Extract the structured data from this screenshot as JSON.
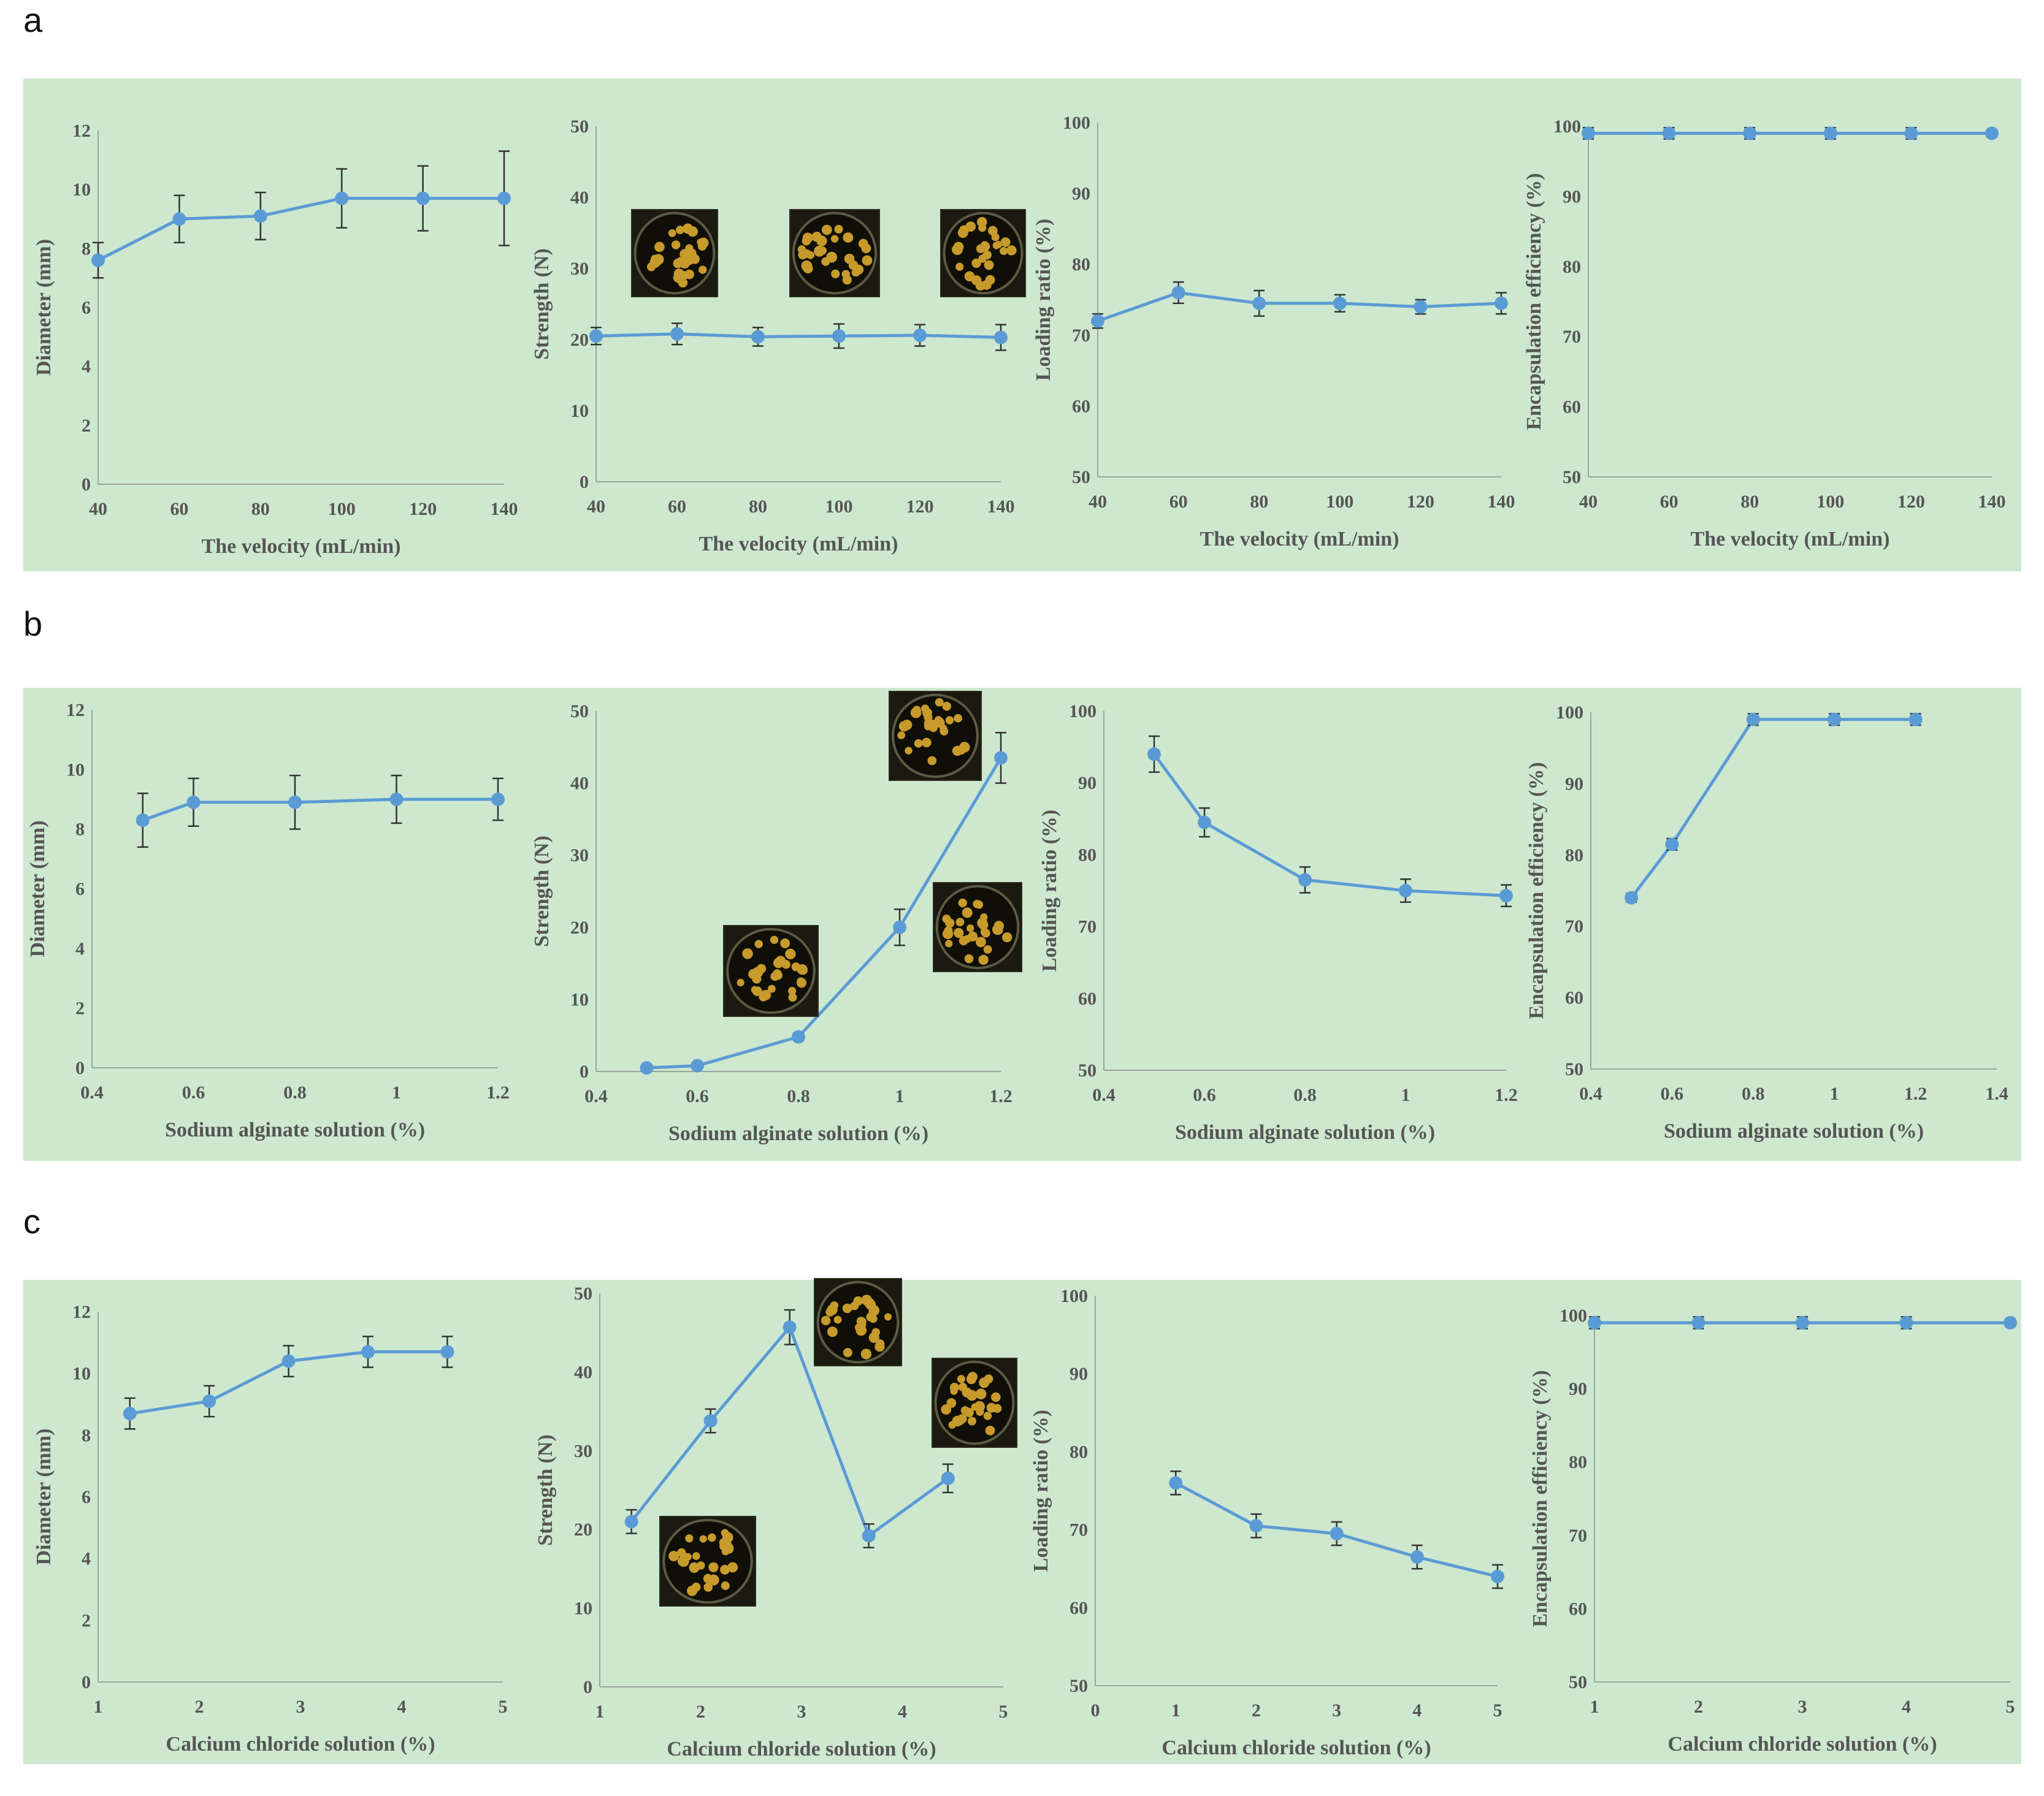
{
  "panel_labels": [
    "a",
    "b",
    "c"
  ],
  "colors": {
    "band": "#cde8cf",
    "series": "#5b9bd5",
    "error_bar": "#333333"
  },
  "chart_data": [
    {
      "id": "a1",
      "type": "line",
      "x": [
        40,
        60,
        80,
        100,
        120,
        140
      ],
      "xticks": [
        "40",
        "60",
        "80",
        "100",
        "120",
        "140"
      ],
      "xlim": [
        40,
        140
      ],
      "values": [
        7.6,
        9.0,
        9.1,
        9.7,
        9.7,
        9.7
      ],
      "errors": [
        0.6,
        0.8,
        0.8,
        1.0,
        1.1,
        1.6
      ],
      "yticks": [
        "0",
        "2",
        "4",
        "6",
        "8",
        "10",
        "12"
      ],
      "ylim": [
        0,
        12
      ],
      "xlabel": "The velocity (mL/min)",
      "ylabel": "Diameter (mm)",
      "photos": []
    },
    {
      "id": "a2",
      "type": "line",
      "x": [
        40,
        60,
        80,
        100,
        120,
        140
      ],
      "xticks": [
        "40",
        "60",
        "80",
        "100",
        "120",
        "140"
      ],
      "xlim": [
        40,
        140
      ],
      "values": [
        20.5,
        20.8,
        20.4,
        20.5,
        20.6,
        20.3
      ],
      "errors": [
        1.2,
        1.5,
        1.3,
        1.7,
        1.5,
        1.8
      ],
      "yticks": [
        "0",
        "10",
        "20",
        "30",
        "40",
        "50"
      ],
      "ylim": [
        0,
        50
      ],
      "xlabel": "The velocity (mL/min)",
      "ylabel": "Strength (N)",
      "photos": [
        "dish",
        "dish",
        "dish"
      ]
    },
    {
      "id": "a3",
      "type": "line",
      "x": [
        40,
        60,
        80,
        100,
        120,
        140
      ],
      "xticks": [
        "40",
        "60",
        "80",
        "100",
        "120",
        "140"
      ],
      "xlim": [
        40,
        140
      ],
      "values": [
        72.0,
        76.0,
        74.5,
        74.5,
        74.0,
        74.5
      ],
      "errors": [
        1.0,
        1.5,
        1.8,
        1.2,
        1.0,
        1.5
      ],
      "yticks": [
        "50",
        "60",
        "70",
        "80",
        "90",
        "100"
      ],
      "ylim": [
        50,
        100
      ],
      "xlabel": "The velocity (mL/min)",
      "ylabel": "Loading ratio (%)",
      "photos": []
    },
    {
      "id": "a4",
      "type": "line",
      "x": [
        40,
        60,
        80,
        100,
        120,
        140
      ],
      "xticks": [
        "40",
        "60",
        "80",
        "100",
        "120",
        "140"
      ],
      "xlim": [
        40,
        140
      ],
      "values": [
        99.0,
        99.0,
        99.0,
        99.0,
        99.0,
        99.0
      ],
      "errors": [
        0.8,
        0.8,
        0.8,
        0.8,
        0.8,
        0.5
      ],
      "yticks": [
        "50",
        "60",
        "70",
        "80",
        "90",
        "100"
      ],
      "ylim": [
        50,
        100
      ],
      "xlabel": "The velocity (mL/min)",
      "ylabel": "Encapsulation efficiency (%)",
      "photos": []
    },
    {
      "id": "b1",
      "type": "line",
      "x": [
        0.5,
        0.6,
        0.8,
        1.0,
        1.2
      ],
      "xticks": [
        "0.4",
        "0.6",
        "0.8",
        "1",
        "1.2"
      ],
      "xlim": [
        0.4,
        1.2
      ],
      "values": [
        8.3,
        8.9,
        8.9,
        9.0,
        9.0
      ],
      "errors": [
        0.9,
        0.8,
        0.9,
        0.8,
        0.7
      ],
      "yticks": [
        "0",
        "2",
        "4",
        "6",
        "8",
        "10",
        "12"
      ],
      "ylim": [
        0,
        12
      ],
      "xlabel": "Sodium alginate solution (%)",
      "ylabel": "Diameter (mm)",
      "photos": []
    },
    {
      "id": "b2",
      "type": "line",
      "x": [
        0.5,
        0.6,
        0.8,
        1.0,
        1.2
      ],
      "xticks": [
        "0.4",
        "0.6",
        "0.8",
        "1",
        "1.2"
      ],
      "xlim": [
        0.4,
        1.2
      ],
      "values": [
        0.5,
        0.8,
        4.8,
        20.0,
        43.5
      ],
      "errors": [
        0.2,
        0.2,
        0.5,
        2.5,
        3.5
      ],
      "yticks": [
        "0",
        "10",
        "20",
        "30",
        "40",
        "50"
      ],
      "ylim": [
        0,
        50
      ],
      "xlabel": "Sodium alginate solution (%)",
      "ylabel": "Strength (N)",
      "photos": [
        "dish",
        "dish",
        "dish"
      ]
    },
    {
      "id": "b3",
      "type": "line",
      "x": [
        0.5,
        0.6,
        0.8,
        1.0,
        1.2
      ],
      "xticks": [
        "0.4",
        "0.6",
        "0.8",
        "1",
        "1.2"
      ],
      "xlim": [
        0.4,
        1.2
      ],
      "values": [
        94.0,
        84.5,
        76.5,
        75.0,
        74.3
      ],
      "errors": [
        2.5,
        2.0,
        1.8,
        1.6,
        1.5
      ],
      "yticks": [
        "50",
        "60",
        "70",
        "80",
        "90",
        "100"
      ],
      "ylim": [
        50,
        100
      ],
      "xlabel": "Sodium alginate solution (%)",
      "ylabel": "Loading ratio (%)",
      "photos": []
    },
    {
      "id": "b4",
      "type": "line",
      "x": [
        0.5,
        0.6,
        0.8,
        1.0,
        1.2
      ],
      "xticks": [
        "0.4",
        "0.6",
        "0.8",
        "1",
        "1.2",
        "1.4"
      ],
      "xlim": [
        0.4,
        1.4
      ],
      "values": [
        74.0,
        81.5,
        99.0,
        99.0,
        99.0
      ],
      "errors": [
        0.6,
        0.8,
        0.8,
        0.8,
        0.8
      ],
      "yticks": [
        "50",
        "60",
        "70",
        "80",
        "90",
        "100"
      ],
      "ylim": [
        50,
        100
      ],
      "xlabel": "Sodium alginate solution (%)",
      "ylabel": "Encapsulation efficiency (%)",
      "photos": []
    },
    {
      "id": "c1",
      "type": "line",
      "x": [
        1,
        2,
        3,
        4,
        5
      ],
      "xticks": [
        "1",
        "2",
        "3",
        "4",
        "5"
      ],
      "xlim": [
        0.6,
        5.7
      ],
      "values": [
        8.7,
        9.1,
        10.4,
        10.7,
        10.7
      ],
      "errors": [
        0.5,
        0.5,
        0.5,
        0.5,
        0.5
      ],
      "yticks": [
        "0",
        "2",
        "4",
        "6",
        "8",
        "10",
        "12"
      ],
      "ylim": [
        0,
        12
      ],
      "xlabel": "Calcium chloride solution (%)",
      "ylabel": "Diameter (mm)",
      "photos": []
    },
    {
      "id": "c2",
      "type": "line",
      "x": [
        1,
        2,
        3,
        4,
        5
      ],
      "xticks": [
        "1",
        "2",
        "3",
        "4",
        "5"
      ],
      "xlim": [
        0.6,
        5.7
      ],
      "values": [
        21.0,
        33.8,
        45.7,
        19.2,
        26.5
      ],
      "errors": [
        1.5,
        1.5,
        2.2,
        1.5,
        1.8
      ],
      "yticks": [
        "0",
        "10",
        "20",
        "30",
        "40",
        "50"
      ],
      "ylim": [
        0,
        50
      ],
      "xlabel": "Calcium chloride solution (%)",
      "ylabel": "Strength (N)",
      "photos": [
        "dish",
        "dish",
        "dish"
      ]
    },
    {
      "id": "c3",
      "type": "line",
      "x": [
        1,
        2,
        3,
        4,
        5
      ],
      "xticks": [
        "0",
        "1",
        "2",
        "3",
        "4",
        "5"
      ],
      "xlim": [
        0,
        5
      ],
      "values": [
        76.0,
        70.5,
        69.5,
        66.5,
        64.0
      ],
      "errors": [
        1.5,
        1.5,
        1.5,
        1.5,
        1.5
      ],
      "yticks": [
        "50",
        "60",
        "70",
        "80",
        "90",
        "100"
      ],
      "ylim": [
        50,
        100
      ],
      "xlabel": "Calcium chloride solution (%)",
      "ylabel": "Loading ratio (%)",
      "photos": []
    },
    {
      "id": "c4",
      "type": "line",
      "x": [
        1,
        2,
        3,
        4,
        5
      ],
      "xticks": [
        "1",
        "2",
        "3",
        "4",
        "5"
      ],
      "xlim": [
        1,
        5
      ],
      "values": [
        99.0,
        99.0,
        99.0,
        99.0,
        99.0
      ],
      "errors": [
        0.8,
        0.8,
        0.8,
        0.8,
        0.5
      ],
      "yticks": [
        "50",
        "60",
        "70",
        "80",
        "90",
        "100"
      ],
      "ylim": [
        50,
        100
      ],
      "xlabel": "Calcium chloride solution (%)",
      "ylabel": "Encapsulation efficiency (%)",
      "photos": []
    }
  ]
}
